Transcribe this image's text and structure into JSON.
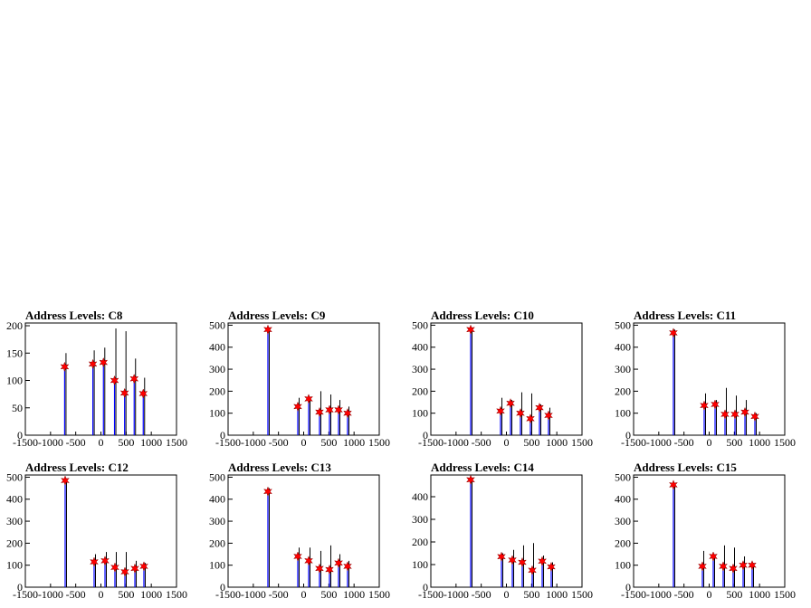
{
  "chart_data": [
    {
      "type": "spike",
      "title": "Address Levels: C8",
      "xlim": [
        -1500,
        1500
      ],
      "xticks": [
        -1500,
        -1000,
        -500,
        0,
        500,
        1000,
        1500
      ],
      "ylim": [
        0,
        205
      ],
      "yticks": [
        0,
        50,
        100,
        150,
        200
      ],
      "x": [
        -720,
        -160,
        50,
        270,
        470,
        660,
        840
      ],
      "series": [
        {
          "color": "#000000",
          "values": [
            150,
            155,
            160,
            195,
            190,
            140,
            105
          ]
        }
      ],
      "markers": {
        "color": "#ff0000",
        "line_color": "#0000ff",
        "values": [
          125,
          130,
          133,
          100,
          77,
          103,
          76
        ]
      }
    },
    {
      "type": "spike",
      "title": "Address Levels: C9",
      "xlim": [
        -1500,
        1500
      ],
      "xticks": [
        -1500,
        -1000,
        -500,
        0,
        500,
        1000,
        1500
      ],
      "ylim": [
        0,
        510
      ],
      "yticks": [
        0,
        100,
        200,
        300,
        400,
        500
      ],
      "x": [
        -710,
        -117,
        99,
        314,
        512,
        692,
        871
      ],
      "series": [
        {
          "color": "#000000",
          "values": [
            490,
            170,
            175,
            200,
            185,
            160,
            130
          ]
        }
      ],
      "markers": {
        "color": "#ff0000",
        "line_color": "#0000ff",
        "values": [
          480,
          130,
          165,
          105,
          115,
          115,
          100
        ]
      }
    },
    {
      "type": "spike",
      "title": "Address Levels: C10",
      "xlim": [
        -1500,
        1500
      ],
      "xticks": [
        -1500,
        -1000,
        -500,
        0,
        500,
        1000,
        1500
      ],
      "ylim": [
        0,
        510
      ],
      "yticks": [
        0,
        100,
        200,
        300,
        400,
        500
      ],
      "x": [
        -710,
        -117,
        81,
        278,
        476,
        656,
        835
      ],
      "series": [
        {
          "color": "#000000",
          "values": [
            490,
            170,
            160,
            195,
            190,
            140,
            125
          ]
        }
      ],
      "markers": {
        "color": "#ff0000",
        "line_color": "#0000ff",
        "values": [
          480,
          110,
          145,
          100,
          75,
          125,
          90
        ]
      }
    },
    {
      "type": "spike",
      "title": "Address Levels: C11",
      "xlim": [
        -1500,
        1500
      ],
      "xticks": [
        -1500,
        -1000,
        -500,
        0,
        500,
        1000,
        1500
      ],
      "ylim": [
        0,
        510
      ],
      "yticks": [
        0,
        100,
        200,
        300,
        400,
        500
      ],
      "x": [
        -710,
        -99,
        117,
        314,
        512,
        710,
        907
      ],
      "series": [
        {
          "color": "#000000",
          "values": [
            480,
            190,
            160,
            215,
            180,
            160,
            100
          ]
        }
      ],
      "markers": {
        "color": "#ff0000",
        "line_color": "#0000ff",
        "values": [
          465,
          135,
          140,
          95,
          95,
          105,
          85
        ]
      }
    },
    {
      "type": "spike",
      "title": "Address Levels: C12",
      "xlim": [
        -1500,
        1500
      ],
      "xticks": [
        -1500,
        -1000,
        -500,
        0,
        500,
        1000,
        1500
      ],
      "ylim": [
        0,
        510
      ],
      "yticks": [
        0,
        100,
        200,
        300,
        400,
        500
      ],
      "x": [
        -710,
        -135,
        81,
        278,
        476,
        674,
        853
      ],
      "series": [
        {
          "color": "#000000",
          "values": [
            495,
            150,
            160,
            160,
            160,
            120,
            110
          ]
        }
      ],
      "markers": {
        "color": "#ff0000",
        "line_color": "#0000ff",
        "values": [
          485,
          115,
          120,
          90,
          70,
          85,
          95
        ]
      }
    },
    {
      "type": "spike",
      "title": "Address Levels: C13",
      "xlim": [
        -1500,
        1500
      ],
      "xticks": [
        -1500,
        -1000,
        -500,
        0,
        500,
        1000,
        1500
      ],
      "ylim": [
        0,
        510
      ],
      "yticks": [
        0,
        100,
        200,
        300,
        400,
        500
      ],
      "x": [
        -710,
        -117,
        99,
        314,
        512,
        692,
        871
      ],
      "series": [
        {
          "color": "#000000",
          "values": [
            450,
            180,
            180,
            165,
            190,
            150,
            120
          ]
        }
      ],
      "markers": {
        "color": "#ff0000",
        "line_color": "#0000ff",
        "values": [
          435,
          140,
          120,
          85,
          80,
          110,
          95
        ]
      }
    },
    {
      "type": "spike",
      "title": "Address Levels: C14",
      "xlim": [
        -1500,
        1500
      ],
      "xticks": [
        -1500,
        -1000,
        -500,
        0,
        500,
        1000,
        1500
      ],
      "ylim": [
        0,
        496
      ],
      "yticks": [
        0,
        100,
        200,
        300,
        400
      ],
      "x": [
        -710,
        -99,
        117,
        314,
        512,
        710,
        889
      ],
      "series": [
        {
          "color": "#000000",
          "values": [
            485,
            150,
            165,
            185,
            195,
            140,
            110
          ]
        }
      ],
      "markers": {
        "color": "#ff0000",
        "line_color": "#0000ff",
        "values": [
          475,
          135,
          120,
          110,
          75,
          115,
          90
        ]
      }
    },
    {
      "type": "spike",
      "title": "Address Levels: C15",
      "xlim": [
        -1500,
        1500
      ],
      "xticks": [
        -1500,
        -1000,
        -500,
        0,
        500,
        1000,
        1500
      ],
      "ylim": [
        0,
        510
      ],
      "yticks": [
        0,
        100,
        200,
        300,
        400,
        500
      ],
      "x": [
        -710,
        -135,
        81,
        278,
        476,
        674,
        853
      ],
      "series": [
        {
          "color": "#000000",
          "values": [
            475,
            165,
            150,
            190,
            180,
            140,
            110
          ]
        }
      ],
      "markers": {
        "color": "#ff0000",
        "line_color": "#0000ff",
        "values": [
          465,
          95,
          140,
          95,
          85,
          100,
          100
        ]
      }
    }
  ]
}
